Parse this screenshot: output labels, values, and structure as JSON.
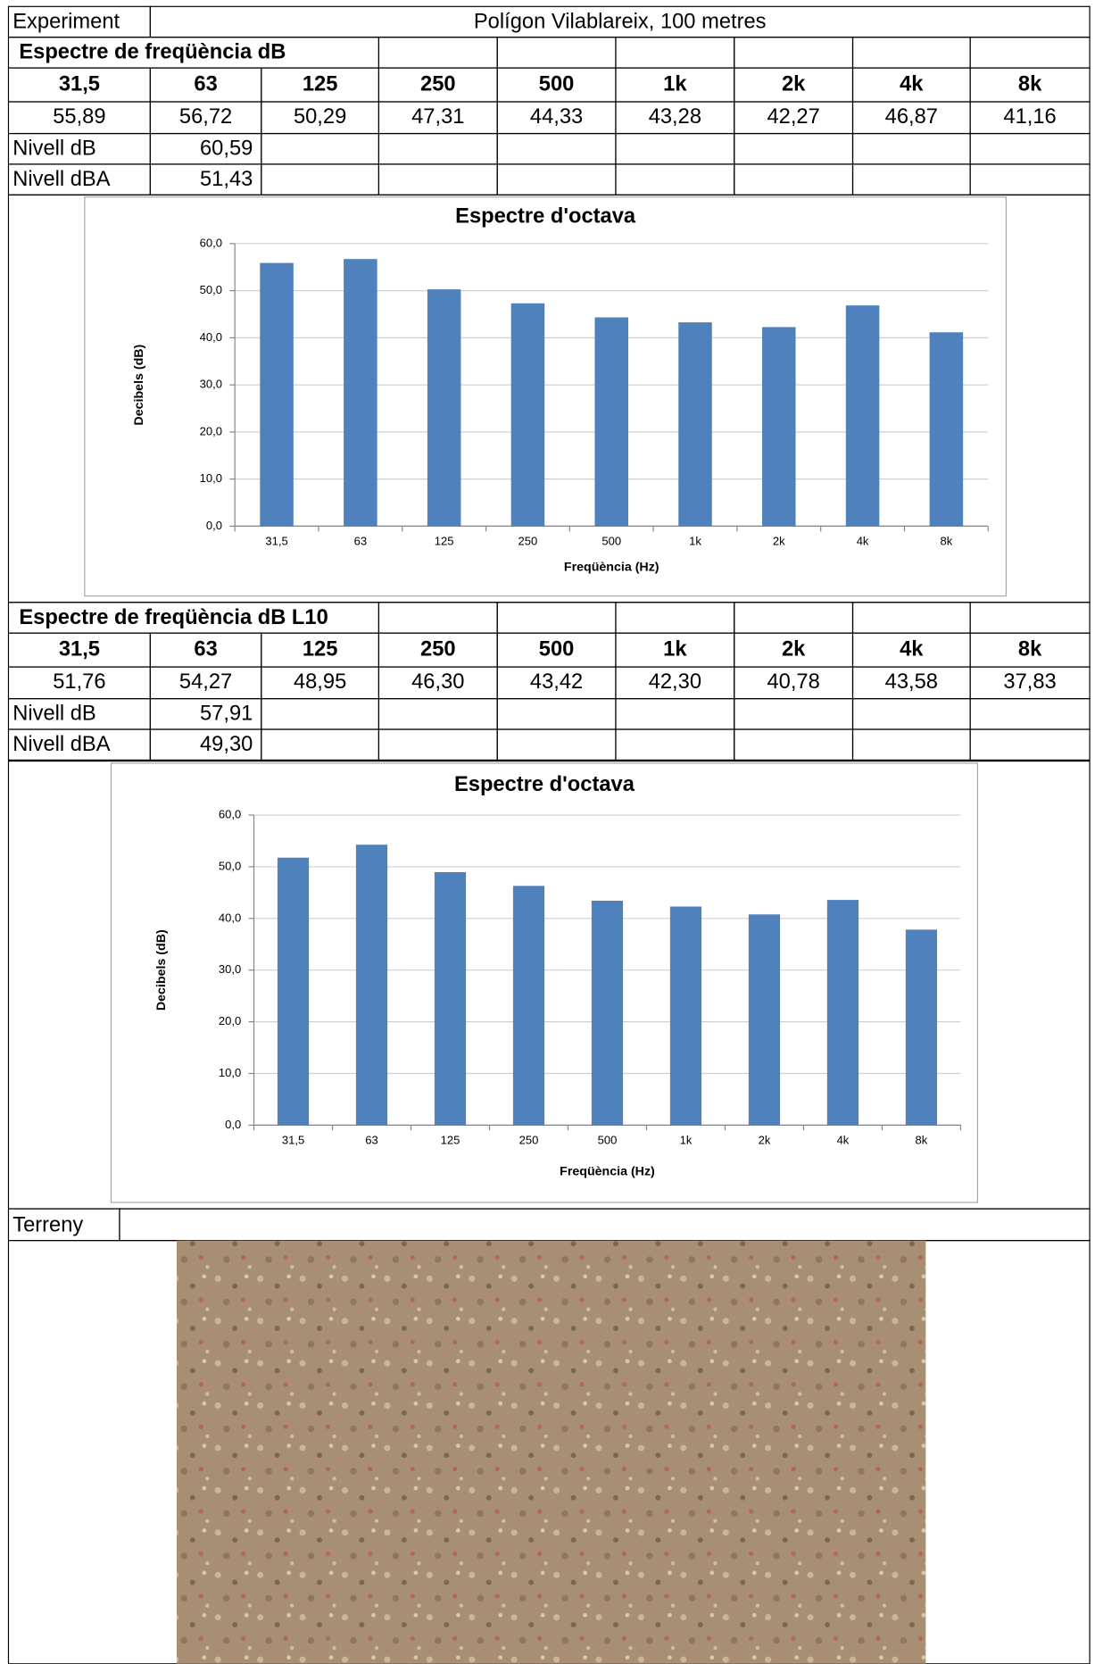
{
  "experiment": {
    "label": "Experiment",
    "value": "Polígon Vilablareix, 100 metres"
  },
  "sections": [
    {
      "title": "Espectre de freqüència dB",
      "bands": [
        "31,5",
        "63",
        "125",
        "250",
        "500",
        "1k",
        "2k",
        "4k",
        "8k"
      ],
      "values": [
        "55,89",
        "56,72",
        "50,29",
        "47,31",
        "44,33",
        "43,28",
        "42,27",
        "46,87",
        "41,16"
      ],
      "levels": [
        [
          "Nivell dB",
          "60,59"
        ],
        [
          "Nivell dBA",
          "51,43"
        ]
      ]
    },
    {
      "title": "Espectre de freqüència dB L10",
      "bands": [
        "31,5",
        "63",
        "125",
        "250",
        "500",
        "1k",
        "2k",
        "4k",
        "8k"
      ],
      "values": [
        "51,76",
        "54,27",
        "48,95",
        "46,30",
        "43,42",
        "42,30",
        "40,78",
        "43,58",
        "37,83"
      ],
      "levels": [
        [
          "Nivell dB",
          "57,91"
        ],
        [
          "Nivell dBA",
          "49,30"
        ]
      ]
    }
  ],
  "chart_data": [
    {
      "type": "bar",
      "title": "Espectre d'octava",
      "x_label": "Freqüència (Hz)",
      "y_label": "Decibels (dB)",
      "categories": [
        "31,5",
        "63",
        "125",
        "250",
        "500",
        "1k",
        "2k",
        "4k",
        "8k"
      ],
      "values": [
        55.89,
        56.72,
        50.29,
        47.31,
        44.33,
        43.28,
        42.27,
        46.87,
        41.16
      ],
      "color": "#4f81bd",
      "ylim": [
        0,
        60
      ],
      "yticks": [
        {
          "value": 0,
          "label": "0,0"
        },
        {
          "value": 10,
          "label": "10,0"
        },
        {
          "value": 20,
          "label": "20,0"
        },
        {
          "value": 30,
          "label": "30,0"
        },
        {
          "value": 40,
          "label": "40,0"
        },
        {
          "value": 50,
          "label": "50,0"
        },
        {
          "value": 60,
          "label": "60,0"
        }
      ],
      "grid": true
    },
    {
      "type": "bar",
      "title": "Espectre d'octava",
      "x_label": "Freqüència (Hz)",
      "y_label": "Decibels (dB)",
      "categories": [
        "31,5",
        "63",
        "125",
        "250",
        "500",
        "1k",
        "2k",
        "4k",
        "8k"
      ],
      "values": [
        51.76,
        54.27,
        48.95,
        46.3,
        43.42,
        42.3,
        40.78,
        43.58,
        37.83
      ],
      "color": "#4f81bd",
      "ylim": [
        0,
        60
      ],
      "yticks": [
        {
          "value": 0,
          "label": "0,0"
        },
        {
          "value": 10,
          "label": "10,0"
        },
        {
          "value": 20,
          "label": "20,0"
        },
        {
          "value": 30,
          "label": "30,0"
        },
        {
          "value": 40,
          "label": "40,0"
        },
        {
          "value": 50,
          "label": "50,0"
        },
        {
          "value": 60,
          "label": "60,0"
        }
      ],
      "grid": true
    }
  ],
  "terrain": {
    "label": "Terreny"
  }
}
